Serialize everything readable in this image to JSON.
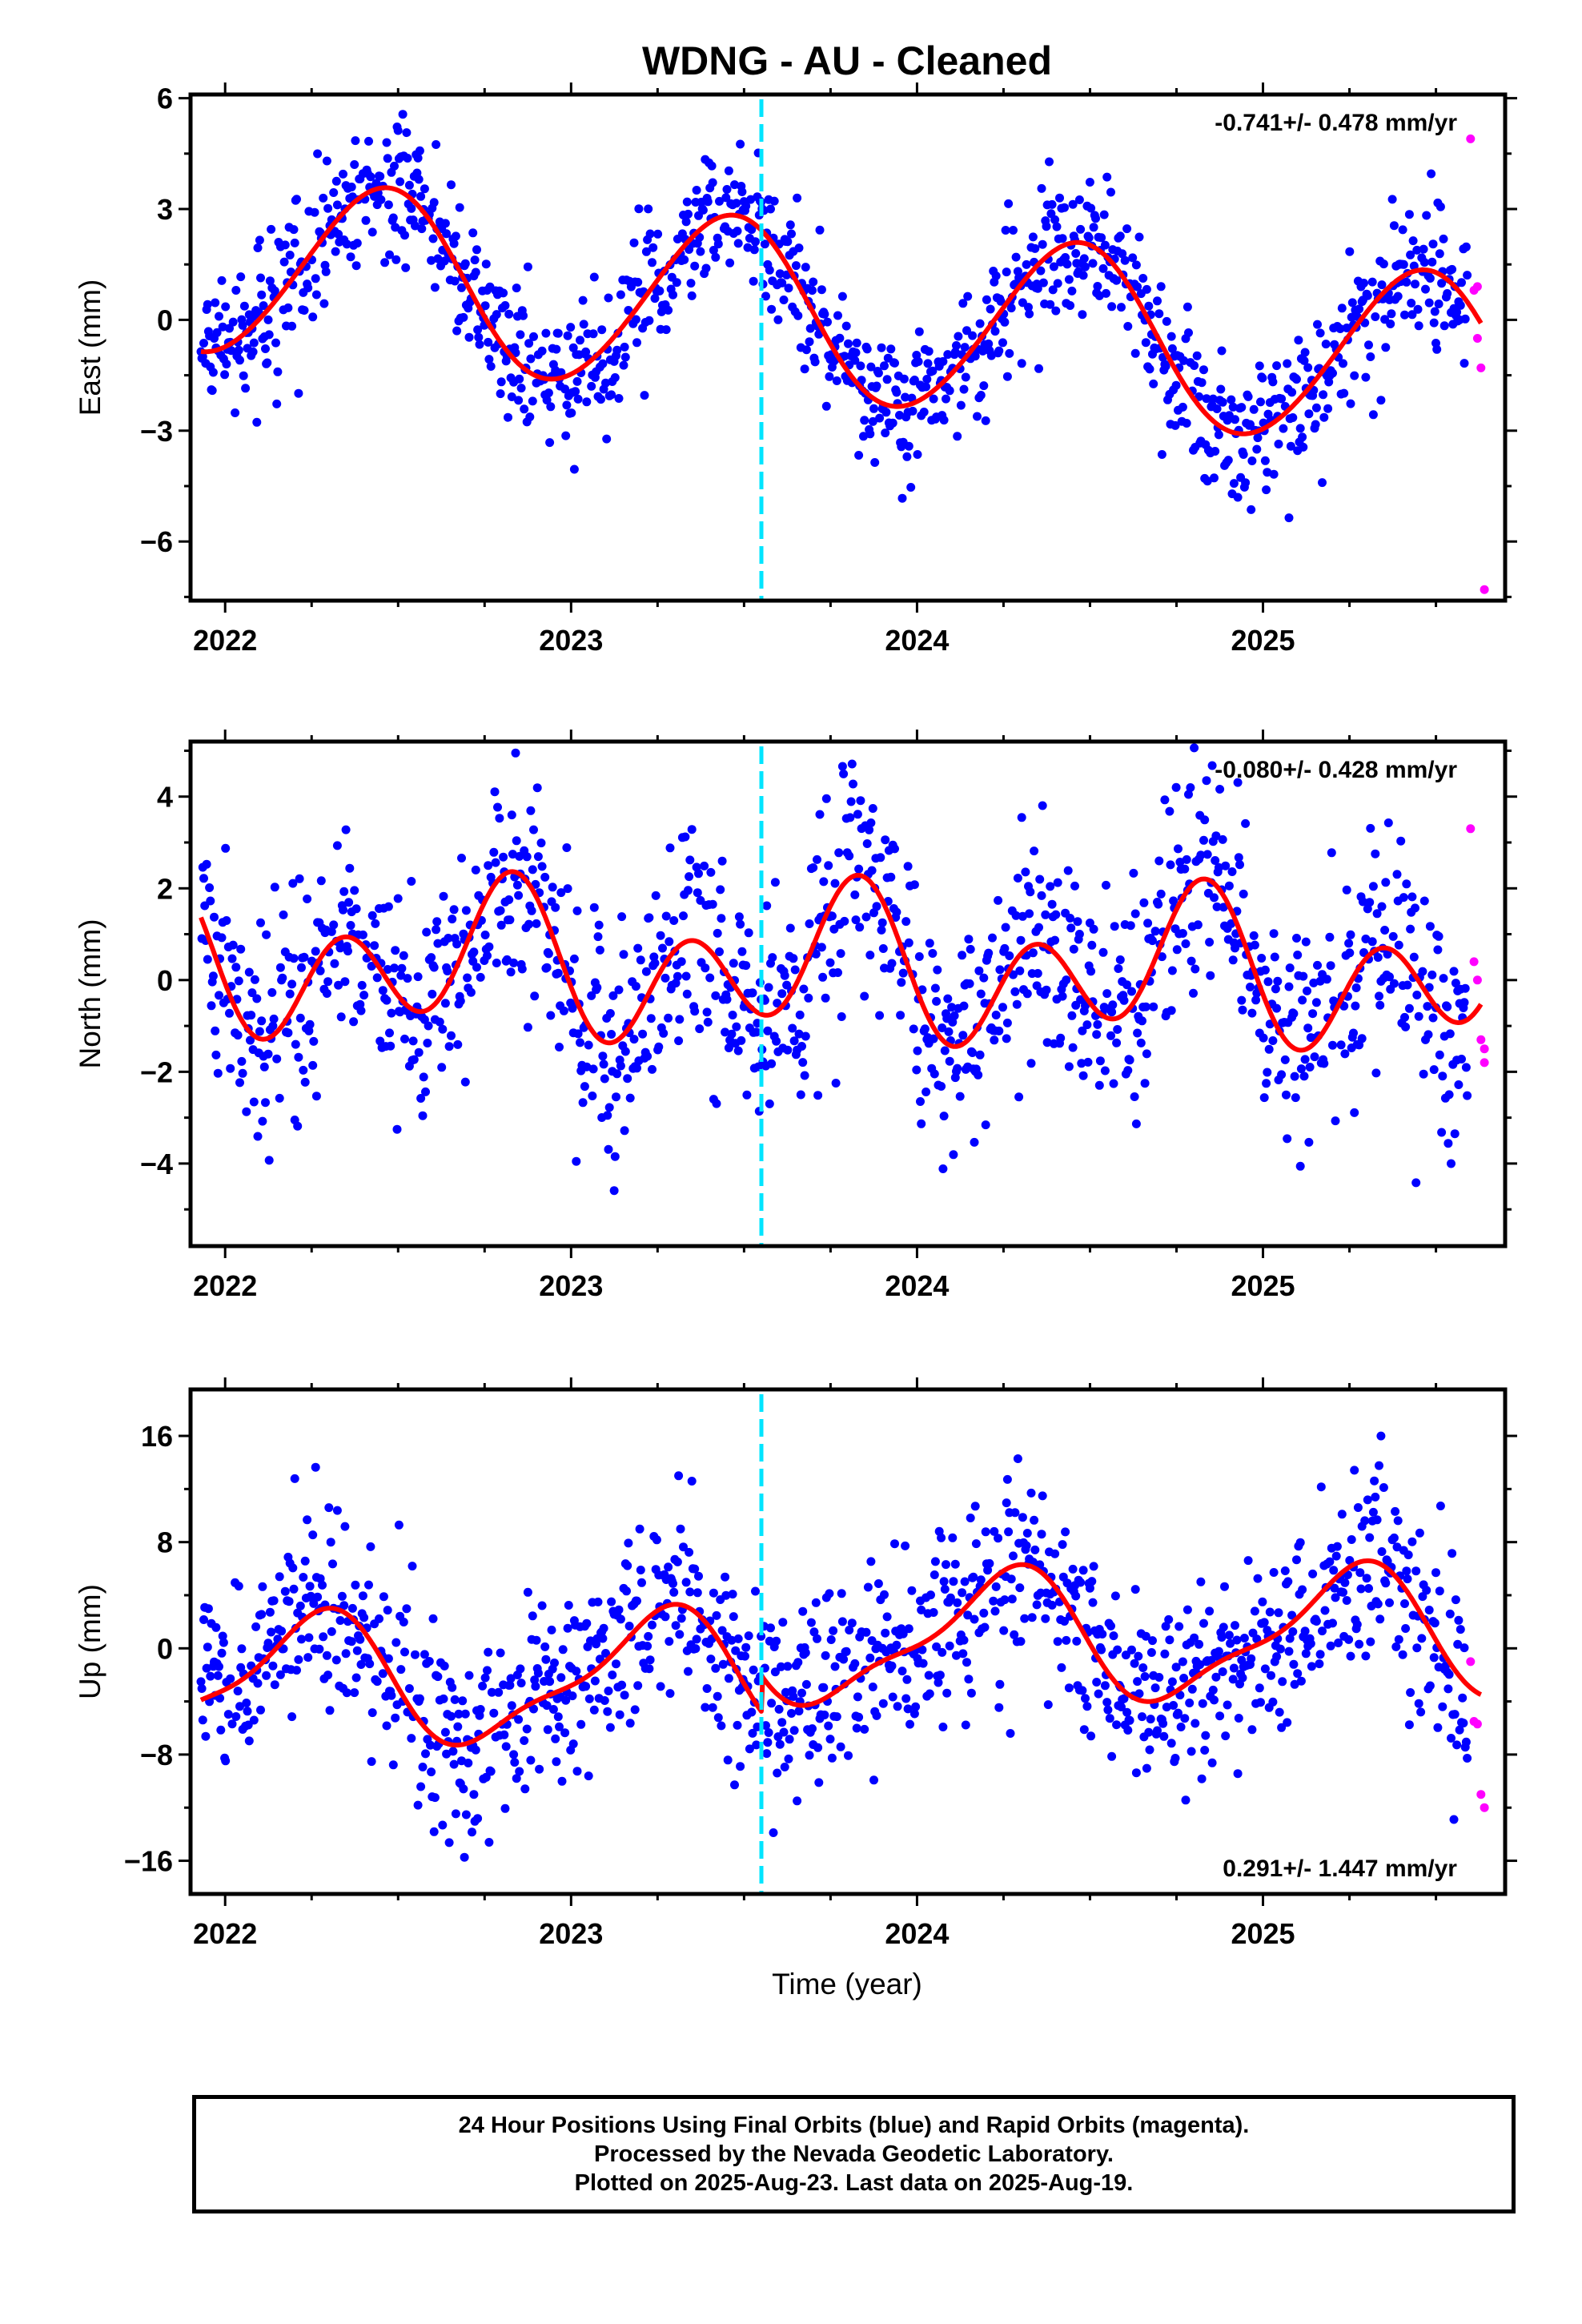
{
  "title": "WDNG  - AU - Cleaned",
  "caption": [
    "24 Hour Positions Using Final Orbits (blue) and Rapid Orbits (magenta).",
    "Processed by the Nevada Geodetic Laboratory.",
    "Plotted on 2025-Aug-23. Last data on 2025-Aug-19."
  ],
  "colors": {
    "final_orbits": "#0000ff",
    "rapid_orbits": "#ff00ff",
    "model_fit": "#ff0000",
    "equipment_change": "#00e5ff"
  },
  "chart_data": [
    {
      "type": "scatter",
      "ylabel": "East (mm)",
      "xlim": [
        2021.9,
        2025.7
      ],
      "ylim": [
        -7.6,
        6.1
      ],
      "xticks": [
        2022,
        2023,
        2024,
        2025
      ],
      "yticks": [
        -6,
        -3,
        0,
        3,
        6
      ],
      "rate_text": "-0.741+/- 0.478 mm/yr",
      "rate_position": "top-right",
      "equipment_change_x": 2023.55,
      "series": [
        {
          "role": "final",
          "start": 2021.93,
          "end": 2025.59,
          "offset": 0.15,
          "trend": -0.741,
          "annual_amp": 2.4,
          "annual_phase": 5.0,
          "semiannual_amp": 0.15,
          "semiannual_phase": 1.0,
          "step_at": 2023.55,
          "step": 0.0,
          "noise_sd": 0.95
        },
        {
          "role": "rapid",
          "x": [
            2025.6,
            2025.61,
            2025.62,
            2025.62,
            2025.63,
            2025.64
          ],
          "y": [
            4.9,
            0.8,
            0.9,
            -0.5,
            -1.3,
            -7.3
          ]
        }
      ],
      "model": {
        "start": 2021.93,
        "end": 2025.63
      }
    },
    {
      "type": "scatter",
      "ylabel": "North (mm)",
      "xlim": [
        2021.9,
        2025.7
      ],
      "ylim": [
        -5.8,
        5.2
      ],
      "xticks": [
        2022,
        2023,
        2024,
        2025
      ],
      "yticks": [
        -4,
        -2,
        0,
        2,
        4
      ],
      "rate_text": "-0.080+/- 0.428 mm/yr",
      "rate_position": "top-right",
      "equipment_change_x": 2023.55,
      "series": [
        {
          "role": "final",
          "start": 2021.93,
          "end": 2025.59,
          "offset": 0.25,
          "trend": -0.08,
          "annual_amp": 0.8,
          "annual_phase": 3.0,
          "semiannual_amp": 1.3,
          "semiannual_phase": 3.6,
          "step_at": 2023.55,
          "step": 0.0,
          "noise_sd": 1.25
        },
        {
          "role": "rapid",
          "x": [
            2025.6,
            2025.61,
            2025.62,
            2025.63,
            2025.64,
            2025.64
          ],
          "y": [
            3.3,
            0.4,
            0.0,
            -1.3,
            -1.5,
            -1.8
          ]
        }
      ],
      "model": {
        "start": 2021.93,
        "end": 2025.63
      }
    },
    {
      "type": "scatter",
      "ylabel": "Up (mm)",
      "xlim": [
        2021.9,
        2025.7
      ],
      "ylim": [
        -18.5,
        19.5
      ],
      "xticks": [
        2022,
        2023,
        2024,
        2025
      ],
      "yticks": [
        -16,
        -8,
        0,
        8,
        16
      ],
      "rate_text": "0.291+/- 1.447 mm/yr",
      "rate_position": "bottom-right",
      "equipment_change_x": 2023.55,
      "series": [
        {
          "role": "final",
          "start": 2021.93,
          "end": 2025.59,
          "offset": -2.1,
          "trend": 0.291,
          "annual_amp": 4.6,
          "annual_phase": 0.0,
          "semiannual_amp": 1.4,
          "semiannual_phase": 3.5,
          "step_at": 2023.55,
          "step": 2.7,
          "noise_sd": 3.7
        },
        {
          "role": "rapid",
          "x": [
            2025.6,
            2025.61,
            2025.62,
            2025.63,
            2025.64
          ],
          "y": [
            -1.0,
            -5.5,
            -5.7,
            -11.0,
            -12.0
          ]
        }
      ],
      "model": {
        "start": 2021.93,
        "end": 2025.63
      }
    }
  ],
  "xlabel": "Time (year)"
}
